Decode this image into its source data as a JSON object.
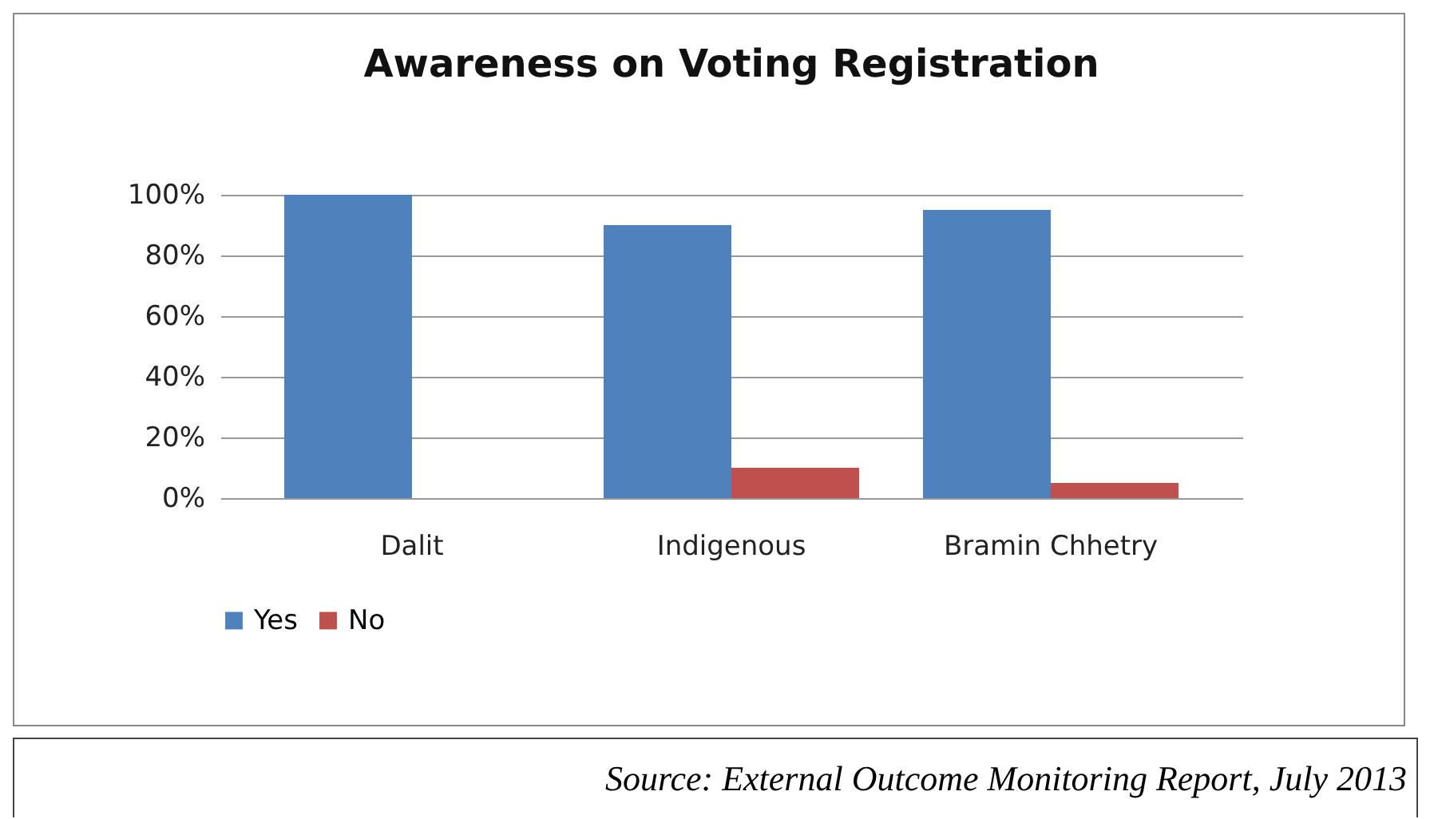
{
  "chart_data": {
    "type": "bar",
    "title": "Awareness on Voting Registration",
    "categories": [
      "Dalit",
      "Indigenous",
      "Bramin Chhetry"
    ],
    "series": [
      {
        "name": "Yes",
        "color": "#4f81bd",
        "values": [
          100,
          90,
          95
        ]
      },
      {
        "name": "No",
        "color": "#c0504d",
        "values": [
          0,
          10,
          5
        ]
      }
    ],
    "ylim": [
      0,
      100
    ],
    "yticks": [
      {
        "value": 0,
        "label": "0%"
      },
      {
        "value": 20,
        "label": "20%"
      },
      {
        "value": 40,
        "label": "40%"
      },
      {
        "value": 60,
        "label": "60%"
      },
      {
        "value": 80,
        "label": "80%"
      },
      {
        "value": 100,
        "label": "100%"
      }
    ],
    "grid": "y",
    "legend": "bottom",
    "annotations": [
      "Source: External Outcome Monitoring Report, July 2013"
    ]
  }
}
